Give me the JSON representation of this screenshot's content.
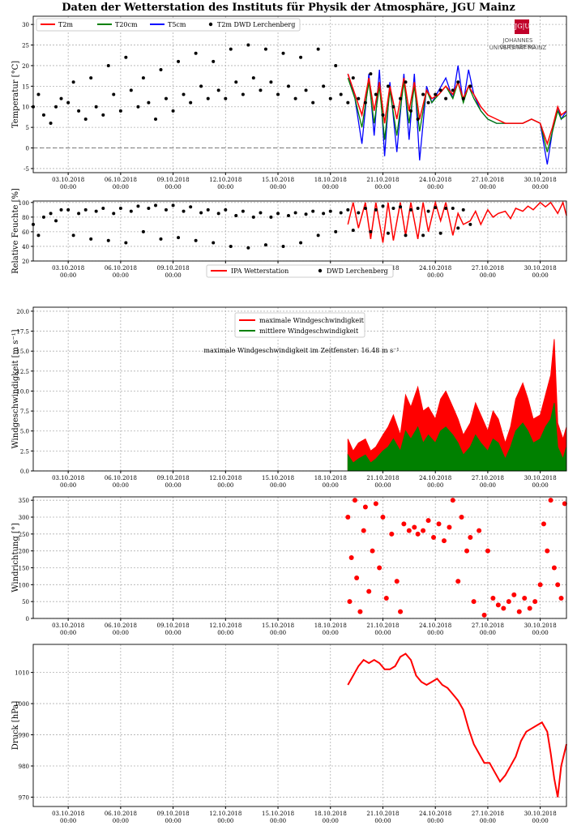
{
  "title": "Daten der Wetterstation des Instituts für Physik der Atmosphäre, JGU Mainz",
  "logo": {
    "mark": "JG|U",
    "line1": "JOHANNES GUTENBERG",
    "line2": "UNIVERSITÄT MAINZ"
  },
  "x_ticks": [
    {
      "day": 2,
      "l1": "03.10.2018",
      "l2": "00:00"
    },
    {
      "day": 5,
      "l1": "06.10.2018",
      "l2": "00:00"
    },
    {
      "day": 8,
      "l1": "09.10.2018",
      "l2": "00:00"
    },
    {
      "day": 11,
      "l1": "12.10.2018",
      "l2": "00:00"
    },
    {
      "day": 14,
      "l1": "15.10.2018",
      "l2": "00:00"
    },
    {
      "day": 17,
      "l1": "18.10.2018",
      "l2": "00:00"
    },
    {
      "day": 20,
      "l1": "21.10.2018",
      "l2": "00:00"
    },
    {
      "day": 23,
      "l1": "24.10.2018",
      "l2": "00:00"
    },
    {
      "day": 26,
      "l1": "27.10.2018",
      "l2": "00:00"
    },
    {
      "day": 29,
      "l1": "30.10.2018",
      "l2": "00:00"
    }
  ],
  "colors": {
    "red": "#ff0000",
    "green": "#008000",
    "blue": "#0000ff",
    "black": "#000000",
    "grid": "#b0b0b0"
  },
  "chart_data": [
    {
      "type": "line",
      "ylabel": "Temperatur [°C]",
      "xlim": [
        "01.10.2018 00:00",
        "31.10.2018 12:00"
      ],
      "ylim": [
        -6,
        32
      ],
      "yticks": [
        -5,
        0,
        5,
        10,
        15,
        20,
        25,
        30
      ],
      "grid": true,
      "legend": {
        "placement": "top-left",
        "entries": [
          "T2m",
          "T20cm",
          "T5cm",
          "T2m DWD Lerchenberg"
        ]
      },
      "zero_line": true,
      "station_series": {
        "T2m": {
          "x_days": [
            18.0,
            18.4,
            18.8,
            19.2,
            19.5,
            19.8,
            20.1,
            20.4,
            20.8,
            21.2,
            21.5,
            21.8,
            22.1,
            22.5,
            22.8,
            23.2,
            23.6,
            24.0,
            24.3,
            24.6,
            24.9,
            25.2,
            25.6,
            26.0,
            26.5,
            27.0,
            27.5,
            28.0,
            28.5,
            29.0,
            29.4,
            29.7,
            30.0,
            30.2,
            30.5
          ],
          "y": [
            18,
            13,
            8,
            17,
            9,
            16,
            6,
            15,
            7,
            17,
            9,
            16,
            7,
            14,
            12,
            13,
            15,
            13,
            16,
            12,
            15,
            13,
            10,
            8,
            7,
            6,
            6,
            6,
            7,
            6,
            1,
            5,
            10,
            8,
            9
          ]
        },
        "T20cm": {
          "x_days": [
            18.0,
            18.4,
            18.8,
            19.2,
            19.5,
            19.8,
            20.1,
            20.4,
            20.8,
            21.2,
            21.5,
            21.8,
            22.1,
            22.5,
            22.8,
            23.2,
            23.6,
            24.0,
            24.3,
            24.6,
            24.9,
            25.2,
            25.6,
            26.0,
            26.5,
            27.0,
            27.5,
            28.0,
            28.5,
            29.0,
            29.4,
            29.7,
            30.0,
            30.2,
            30.5
          ],
          "y": [
            17,
            12,
            5,
            16,
            6,
            15,
            2,
            14,
            3,
            16,
            6,
            15,
            4,
            14,
            11,
            13,
            15,
            12,
            16,
            11,
            15,
            12,
            9,
            7,
            6,
            6,
            6,
            6,
            7,
            6,
            -1,
            4,
            9,
            7,
            8
          ]
        },
        "T5cm": {
          "x_days": [
            18.0,
            18.4,
            18.8,
            19.2,
            19.5,
            19.8,
            20.1,
            20.4,
            20.8,
            21.2,
            21.5,
            21.8,
            22.1,
            22.5,
            22.8,
            23.2,
            23.6,
            24.0,
            24.3,
            24.6,
            24.9,
            25.2,
            25.6,
            26.0,
            26.5,
            27.0,
            27.5,
            28.0,
            28.5,
            29.0,
            29.4,
            29.7,
            30.0,
            30.2,
            30.5
          ],
          "y": [
            18,
            12,
            1,
            18,
            3,
            19,
            -2,
            16,
            -1,
            18,
            2,
            18,
            -3,
            15,
            11,
            14,
            17,
            12,
            20,
            11,
            19,
            13,
            9,
            7,
            6,
            6,
            6,
            6,
            7,
            6,
            -4,
            4,
            10,
            7,
            9
          ]
        }
      },
      "dwd_series": {
        "name": "T2m DWD Lerchenberg",
        "x_days": [
          0.0,
          0.3,
          0.6,
          1.0,
          1.3,
          1.6,
          2.0,
          2.3,
          2.6,
          3.0,
          3.3,
          3.6,
          4.0,
          4.3,
          4.6,
          5.0,
          5.3,
          5.6,
          6.0,
          6.3,
          6.6,
          7.0,
          7.3,
          7.6,
          8.0,
          8.3,
          8.6,
          9.0,
          9.3,
          9.6,
          10.0,
          10.3,
          10.6,
          11.0,
          11.3,
          11.6,
          12.0,
          12.3,
          12.6,
          13.0,
          13.3,
          13.6,
          14.0,
          14.3,
          14.6,
          15.0,
          15.3,
          15.6,
          16.0,
          16.3,
          16.6,
          17.0,
          17.3,
          17.6,
          18.0,
          18.3,
          18.6,
          19.0,
          19.3,
          19.6,
          20.0,
          20.3,
          20.6,
          21.0,
          21.3,
          21.6,
          22.0,
          22.3,
          22.6,
          23.0,
          23.3,
          23.6,
          24.0,
          24.3,
          24.6,
          25.0
        ],
        "y": [
          10,
          13,
          8,
          6,
          10,
          12,
          11,
          16,
          9,
          7,
          17,
          10,
          8,
          20,
          13,
          9,
          22,
          14,
          10,
          17,
          11,
          7,
          19,
          12,
          9,
          21,
          13,
          11,
          23,
          15,
          12,
          21,
          14,
          12,
          24,
          16,
          13,
          25,
          17,
          14,
          24,
          16,
          13,
          23,
          15,
          12,
          22,
          14,
          11,
          24,
          15,
          12,
          20,
          13,
          11,
          17,
          12,
          11,
          18,
          13,
          8,
          15,
          10,
          12,
          16,
          9,
          7,
          13,
          11,
          13,
          14,
          12,
          14,
          16,
          12,
          15
        ]
      }
    },
    {
      "type": "line",
      "ylabel": "Relative Feuchte [%]",
      "ylim": [
        20,
        102
      ],
      "yticks": [
        20,
        40,
        60,
        80,
        100
      ],
      "grid": true,
      "legend": {
        "placement": "bottom-center",
        "entries": [
          "IPA Wetterstation",
          "DWD Lerchenberg"
        ]
      },
      "station_series": {
        "name": "IPA Wetterstation",
        "x_days": [
          18.0,
          18.3,
          18.6,
          19.0,
          19.3,
          19.6,
          20.0,
          20.3,
          20.6,
          21.0,
          21.3,
          21.6,
          22.0,
          22.3,
          22.6,
          23.0,
          23.3,
          23.6,
          24.0,
          24.3,
          24.6,
          25.0,
          25.3,
          25.6,
          26.0,
          26.3,
          26.6,
          27.0,
          27.3,
          27.6,
          28.0,
          28.3,
          28.6,
          29.0,
          29.3,
          29.6,
          30.0,
          30.3,
          30.5
        ],
        "y": [
          70,
          100,
          65,
          100,
          50,
          100,
          45,
          100,
          48,
          100,
          55,
          100,
          50,
          100,
          60,
          100,
          75,
          100,
          55,
          85,
          70,
          75,
          88,
          70,
          90,
          80,
          85,
          88,
          78,
          92,
          88,
          95,
          90,
          100,
          94,
          100,
          85,
          100,
          82
        ]
      },
      "dwd_series": {
        "name": "DWD Lerchenberg",
        "x_days": [
          0.0,
          0.3,
          0.6,
          1.0,
          1.3,
          1.6,
          2.0,
          2.3,
          2.6,
          3.0,
          3.3,
          3.6,
          4.0,
          4.3,
          4.6,
          5.0,
          5.3,
          5.6,
          6.0,
          6.3,
          6.6,
          7.0,
          7.3,
          7.6,
          8.0,
          8.3,
          8.6,
          9.0,
          9.3,
          9.6,
          10.0,
          10.3,
          10.6,
          11.0,
          11.3,
          11.6,
          12.0,
          12.3,
          12.6,
          13.0,
          13.3,
          13.6,
          14.0,
          14.3,
          14.6,
          15.0,
          15.3,
          15.6,
          16.0,
          16.3,
          16.6,
          17.0,
          17.3,
          17.6,
          18.0,
          18.3,
          18.6,
          19.0,
          19.3,
          19.6,
          20.0,
          20.3,
          20.6,
          21.0,
          21.3,
          21.6,
          22.0,
          22.3,
          22.6,
          23.0,
          23.3,
          23.6,
          24.0,
          24.3,
          24.6,
          25.0
        ],
        "y": [
          70,
          55,
          80,
          85,
          75,
          90,
          90,
          55,
          85,
          90,
          50,
          88,
          92,
          48,
          85,
          92,
          45,
          88,
          95,
          60,
          92,
          96,
          50,
          90,
          96,
          52,
          88,
          94,
          48,
          86,
          90,
          45,
          85,
          90,
          40,
          82,
          88,
          38,
          80,
          86,
          42,
          80,
          85,
          40,
          82,
          86,
          45,
          84,
          88,
          55,
          85,
          88,
          60,
          86,
          90,
          62,
          86,
          92,
          60,
          90,
          95,
          58,
          92,
          94,
          55,
          90,
          92,
          55,
          88,
          93,
          58,
          92,
          92,
          65,
          90,
          70
        ]
      }
    },
    {
      "type": "line",
      "ylabel": "Windgeschwindigkeit [m s⁻¹]",
      "ylim": [
        0,
        20.5
      ],
      "yticks": [
        0.0,
        2.5,
        5.0,
        7.5,
        10.0,
        12.5,
        15.0,
        17.5,
        20.0
      ],
      "grid": true,
      "legend": {
        "placement": "top-center",
        "entries": [
          "maximale Windgeschwindigkeit",
          "mittlere Windgeschwindigkeit"
        ]
      },
      "annotation": "maximale Windgeschwindigkeit im Zeitfenster: 16.48 m s⁻¹",
      "series": [
        {
          "name": "maximale Windgeschwindigkeit",
          "x_days": [
            18.0,
            18.3,
            18.6,
            19.0,
            19.3,
            19.6,
            20.0,
            20.3,
            20.6,
            21.0,
            21.3,
            21.6,
            22.0,
            22.3,
            22.6,
            23.0,
            23.3,
            23.6,
            24.0,
            24.3,
            24.6,
            25.0,
            25.3,
            25.6,
            26.0,
            26.3,
            26.6,
            27.0,
            27.3,
            27.6,
            28.0,
            28.3,
            28.6,
            29.0,
            29.3,
            29.6,
            29.8,
            30.0,
            30.3,
            30.5
          ],
          "y": [
            4.0,
            2.5,
            3.5,
            4.0,
            2.5,
            3.0,
            4.5,
            5.5,
            7.0,
            4.5,
            9.5,
            8.0,
            10.5,
            7.5,
            8.0,
            6.5,
            9.0,
            10.0,
            8.0,
            6.5,
            4.5,
            6.0,
            8.5,
            7.0,
            5.0,
            7.5,
            6.5,
            3.5,
            5.5,
            9.0,
            11.0,
            9.0,
            6.5,
            7.0,
            9.5,
            12.0,
            16.5,
            6.0,
            4.0,
            5.5
          ]
        },
        {
          "name": "mittlere Windgeschwindigkeit",
          "x_days": [
            18.0,
            18.3,
            18.6,
            19.0,
            19.3,
            19.6,
            20.0,
            20.3,
            20.6,
            21.0,
            21.3,
            21.6,
            22.0,
            22.3,
            22.6,
            23.0,
            23.3,
            23.6,
            24.0,
            24.3,
            24.6,
            25.0,
            25.3,
            25.6,
            26.0,
            26.3,
            26.6,
            27.0,
            27.3,
            27.6,
            28.0,
            28.3,
            28.6,
            29.0,
            29.3,
            29.6,
            29.8,
            30.0,
            30.3,
            30.5
          ],
          "y": [
            2.0,
            1.0,
            1.5,
            2.0,
            1.0,
            1.5,
            2.5,
            3.0,
            4.0,
            2.5,
            5.0,
            4.0,
            5.5,
            3.5,
            4.5,
            3.5,
            5.0,
            5.5,
            4.5,
            3.5,
            2.0,
            3.0,
            4.5,
            3.5,
            2.5,
            4.0,
            3.5,
            1.5,
            3.0,
            5.0,
            6.0,
            5.0,
            3.5,
            4.0,
            5.5,
            6.5,
            8.5,
            3.0,
            1.5,
            3.0
          ]
        }
      ]
    },
    {
      "type": "scatter",
      "ylabel": "Windrichtung [°]",
      "ylim": [
        0,
        360
      ],
      "yticks": [
        0,
        50,
        100,
        150,
        200,
        250,
        300,
        350
      ],
      "grid": true,
      "series": [
        {
          "name": "",
          "x_days": [
            18.0,
            18.1,
            18.2,
            18.4,
            18.5,
            18.7,
            18.9,
            19.0,
            19.2,
            19.4,
            19.6,
            19.8,
            20.0,
            20.2,
            20.5,
            20.8,
            21.0,
            21.2,
            21.5,
            21.8,
            22.0,
            22.3,
            22.6,
            22.9,
            23.2,
            23.5,
            23.8,
            24.0,
            24.3,
            24.5,
            24.8,
            25.0,
            25.2,
            25.5,
            25.8,
            26.0,
            26.3,
            26.6,
            26.9,
            27.2,
            27.5,
            27.8,
            28.1,
            28.4,
            28.7,
            29.0,
            29.2,
            29.4,
            29.6,
            29.8,
            30.0,
            30.2,
            30.4
          ],
          "y": [
            300,
            50,
            180,
            350,
            120,
            20,
            260,
            330,
            80,
            200,
            340,
            150,
            300,
            60,
            250,
            110,
            20,
            280,
            260,
            270,
            250,
            260,
            290,
            240,
            280,
            230,
            270,
            350,
            110,
            300,
            200,
            240,
            50,
            260,
            10,
            200,
            60,
            40,
            30,
            50,
            70,
            20,
            60,
            30,
            50,
            100,
            280,
            200,
            350,
            150,
            100,
            60,
            340
          ]
        }
      ]
    },
    {
      "type": "line",
      "ylabel": "Druck [hPa]",
      "ylim": [
        967,
        1019
      ],
      "yticks": [
        970,
        980,
        990,
        1000,
        1010
      ],
      "grid": true,
      "series": [
        {
          "name": "",
          "x_days": [
            18.0,
            18.3,
            18.6,
            18.9,
            19.2,
            19.5,
            19.8,
            20.1,
            20.4,
            20.7,
            21.0,
            21.3,
            21.6,
            21.9,
            22.2,
            22.5,
            22.8,
            23.1,
            23.4,
            23.7,
            24.0,
            24.3,
            24.6,
            24.9,
            25.2,
            25.5,
            25.8,
            26.1,
            26.4,
            26.7,
            27.0,
            27.3,
            27.6,
            27.9,
            28.2,
            28.5,
            28.8,
            29.1,
            29.4,
            29.6,
            29.8,
            30.0,
            30.2,
            30.5
          ],
          "y": [
            1006,
            1009,
            1012,
            1014,
            1013,
            1014,
            1013,
            1011,
            1011,
            1012,
            1015,
            1016,
            1014,
            1009,
            1007,
            1006,
            1007,
            1008,
            1006,
            1005,
            1003,
            1001,
            998,
            992,
            987,
            984,
            981,
            981,
            978,
            975,
            977,
            980,
            983,
            988,
            991,
            992,
            993,
            994,
            991,
            984,
            976,
            970,
            980,
            987
          ]
        }
      ]
    }
  ]
}
